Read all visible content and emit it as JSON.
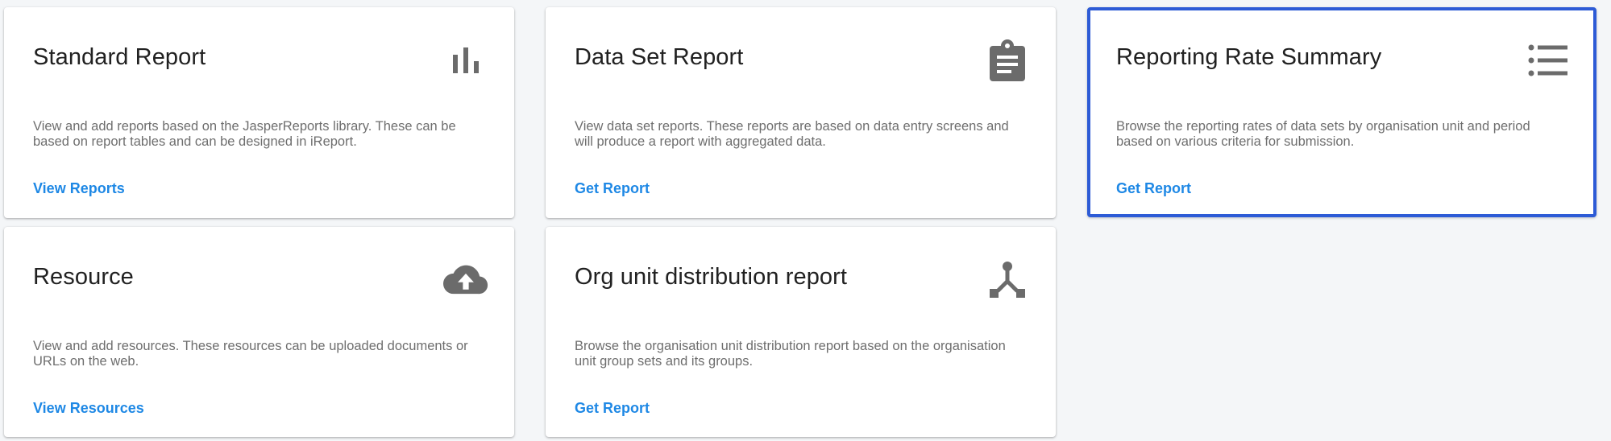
{
  "cards": [
    {
      "title": "Standard Report",
      "icon": "bar-chart-icon",
      "description": "View and add reports based on the JasperReports library. These can be based on report tables and can be designed in iReport.",
      "action": "View Reports"
    },
    {
      "title": "Data Set Report",
      "icon": "clipboard-icon",
      "description": "View data set reports. These reports are based on data entry screens and will produce a report with aggregated data.",
      "action": "Get Report"
    },
    {
      "title": "Reporting Rate Summary",
      "icon": "list-icon",
      "description": "Browse the reporting rates of data sets by organisation unit and period based on various criteria for submission.",
      "action": "Get Report",
      "selected": true
    },
    {
      "title": "Resource",
      "icon": "cloud-upload-icon",
      "description": "View and add resources. These resources can be uploaded documents or URLs on the web.",
      "action": "View Resources"
    },
    {
      "title": "Org unit distribution report",
      "icon": "hierarchy-icon",
      "description": "Browse the organisation unit distribution report based on the organisation unit group sets and its groups.",
      "action": "Get Report"
    }
  ],
  "colors": {
    "background": "#f4f6f8",
    "card": "#ffffff",
    "title": "#212121",
    "description": "#6e6e6e",
    "action_link": "#1e88e5",
    "icon": "#6b6b6b",
    "selected_border": "#2d5bd6"
  }
}
